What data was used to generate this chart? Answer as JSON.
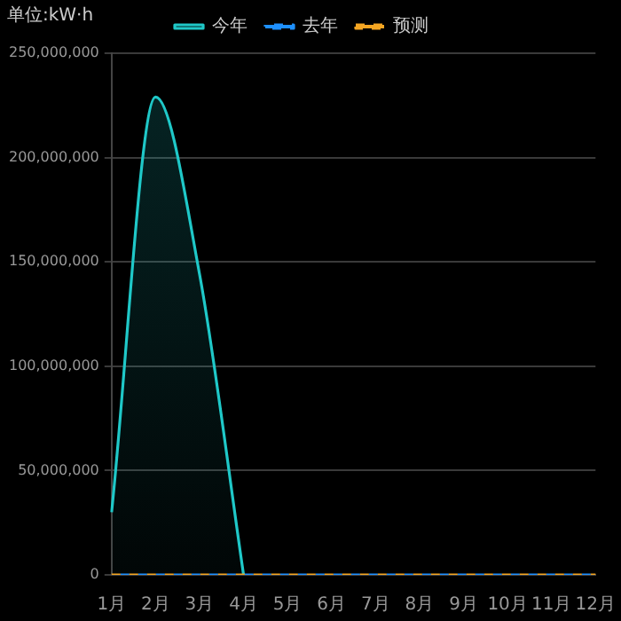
{
  "chart_data": {
    "type": "line",
    "ylabel": "单位:kW·h",
    "categories": [
      "1月",
      "2月",
      "3月",
      "4月",
      "5月",
      "6月",
      "7月",
      "8月",
      "9月",
      "10月",
      "11月",
      "12月"
    ],
    "series": [
      {
        "name": "今年",
        "type": "area",
        "color": "#1fc8c8",
        "values": [
          30000000,
          229000000,
          144000000,
          0,
          null,
          null,
          null,
          null,
          null,
          null,
          null,
          null
        ]
      },
      {
        "name": "去年",
        "color": "#1e90ff",
        "line_style": "dashed",
        "values": [
          0,
          0,
          0,
          0,
          0,
          0,
          0,
          0,
          0,
          0,
          0,
          0
        ]
      },
      {
        "name": "预测",
        "color": "#f5a623",
        "line_style": "dashed",
        "values": [
          0,
          0,
          0,
          0,
          0,
          0,
          0,
          0,
          0,
          0,
          0,
          0
        ]
      }
    ],
    "ylim": [
      0,
      250000000
    ],
    "yticks": [
      0,
      {
        "value": 50000000,
        "label": "50,000,000"
      },
      {
        "value": 100000000,
        "label": "100,000,000"
      },
      {
        "value": 150000000,
        "label": "150,000,000"
      },
      {
        "value": 200000000,
        "label": "200,000,000"
      },
      {
        "value": 250000000,
        "label": "250,000,000"
      }
    ],
    "grid": "y",
    "legend": "top",
    "marker": "none"
  }
}
